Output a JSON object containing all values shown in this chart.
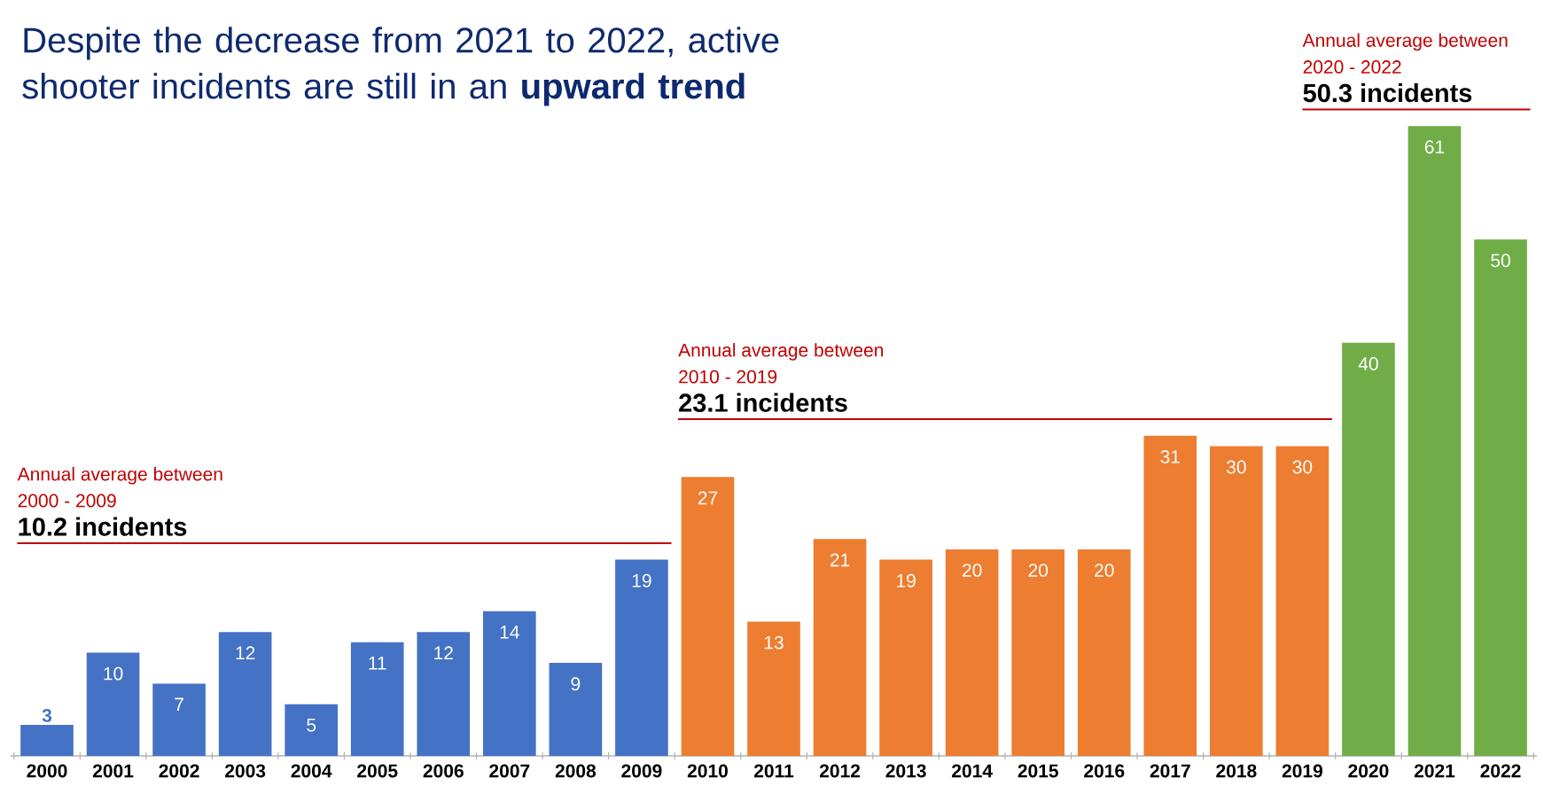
{
  "chart_data": {
    "type": "bar",
    "title": "Despite the decrease from 2021 to 2022, active shooter incidents are still in an **upward trend**",
    "categories": [
      "2000",
      "2001",
      "2002",
      "2003",
      "2004",
      "2005",
      "2006",
      "2007",
      "2008",
      "2009",
      "2010",
      "2011",
      "2012",
      "2013",
      "2014",
      "2015",
      "2016",
      "2017",
      "2018",
      "2019",
      "2020",
      "2021",
      "2022"
    ],
    "values": [
      3,
      10,
      7,
      12,
      5,
      11,
      12,
      14,
      9,
      19,
      27,
      13,
      21,
      19,
      20,
      20,
      20,
      31,
      30,
      30,
      40,
      61,
      50
    ],
    "colors": [
      "#4472c4",
      "#4472c4",
      "#4472c4",
      "#4472c4",
      "#4472c4",
      "#4472c4",
      "#4472c4",
      "#4472c4",
      "#4472c4",
      "#4472c4",
      "#ed7d31",
      "#ed7d31",
      "#ed7d31",
      "#ed7d31",
      "#ed7d31",
      "#ed7d31",
      "#ed7d31",
      "#ed7d31",
      "#ed7d31",
      "#ed7d31",
      "#70ad47",
      "#70ad47",
      "#70ad47"
    ],
    "data_labels": true,
    "annotations": [
      "Annual average between",
      "2000 - 2009",
      "10.2 incidents",
      "Annual average between",
      "2010 - 2019",
      "23.1 incidents",
      "Annual average between",
      "2020 - 2022",
      "50.3 incidents"
    ]
  }
}
